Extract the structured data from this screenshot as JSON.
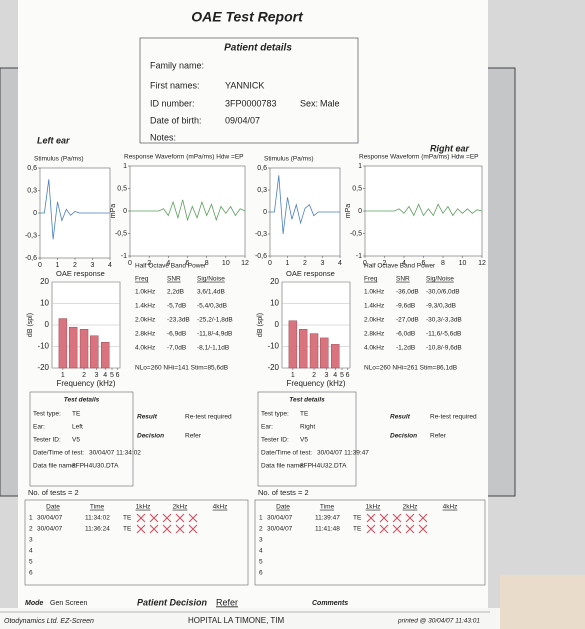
{
  "header": {
    "title": "OAE Test Report"
  },
  "patient": {
    "title": "Patient details",
    "fields": [
      {
        "label": "Family name:"
      },
      {
        "label": "First names:",
        "value": "YANNICK"
      },
      {
        "label": "ID number:",
        "value": "3FP0000783",
        "extra_label": "Sex:",
        "extra_value": "Male"
      },
      {
        "label": "Date of birth:",
        "value": "09/04/07"
      },
      {
        "label": "Notes:"
      }
    ]
  },
  "ears": [
    {
      "label": "Left ear",
      "stimulus": {
        "title": "Stimulus (Pa/ms)",
        "xlim": [
          0,
          4
        ],
        "xticks": [
          0,
          1,
          2,
          3,
          4
        ],
        "ylim": [
          -0.6,
          0.6
        ],
        "yticks": [
          {
            "value": 0.6,
            "label": "0,6"
          },
          {
            "value": 0.3,
            "label": "0,3"
          },
          0,
          {
            "value": -0.3,
            "label": "-0,3"
          },
          {
            "value": -0.6,
            "label": "-0,6"
          }
        ],
        "x": [
          0,
          0.25,
          0.5,
          0.75,
          1,
          1.25,
          1.5,
          1.75,
          2,
          2.25,
          2.5,
          2.75,
          3,
          3.25,
          3.5,
          3.75,
          4
        ],
        "series": [
          {
            "color": "#4a7fc0",
            "values": [
              0,
              0,
              0.45,
              -0.35,
              0.15,
              -0.1,
              0.05,
              -0.03,
              0.02,
              0,
              0,
              0,
              0,
              0,
              0,
              0,
              0
            ]
          }
        ]
      },
      "response": {
        "title": "Response Waveform (mPa/ms) Hdw =EP",
        "ylabel": "mPa",
        "xlim": [
          0,
          12
        ],
        "xticks": [
          0,
          2,
          4,
          6,
          8,
          10,
          12
        ],
        "ylim": [
          -1,
          1
        ],
        "yticks": [
          1,
          {
            "value": 0.5,
            "label": "0,5"
          },
          0,
          {
            "value": -0.5,
            "label": "-0,5"
          },
          -1
        ],
        "x": [
          0,
          0.5,
          1,
          1.5,
          2,
          2.5,
          3,
          3.5,
          4,
          4.5,
          5,
          5.5,
          6,
          6.5,
          7,
          7.5,
          8,
          8.5,
          9,
          9.5,
          10,
          10.5,
          11,
          11.5,
          12
        ],
        "series": [
          {
            "color": "#5aa05a",
            "values": [
              0,
              0,
              0,
              0,
              0,
              0,
              0,
              0.05,
              -0.1,
              0.2,
              -0.15,
              0.25,
              -0.2,
              0.1,
              -0.15,
              0.2,
              -0.1,
              0.15,
              -0.2,
              0.1,
              -0.05,
              0.1,
              -0.1,
              0.05,
              0
            ]
          }
        ]
      },
      "oae": {
        "title": "OAE response",
        "ylabel": "dB (spl)",
        "xlabel": "Frequency (kHz)",
        "log_x": true,
        "grid": true,
        "xlim": [
          0.7,
          6.5
        ],
        "xticks": [
          1,
          2,
          3,
          4,
          5,
          6
        ],
        "ylim": [
          -20,
          20
        ],
        "yticks": [
          20,
          10,
          0,
          -10,
          -20
        ],
        "x": [
          1,
          1.4,
          2,
          2.8,
          4
        ],
        "values": [
          3,
          -1,
          -2,
          -5,
          -8
        ],
        "color": "#d9737e"
      },
      "band": {
        "title": "Half Octave Band Power",
        "header": [
          "Freq",
          "SNR",
          "Sig/Noise"
        ],
        "rows": [
          [
            "1.0kHz",
            "2,2dB",
            "3,6/1,4dB"
          ],
          [
            "1.4kHz",
            "-5,7dB",
            "-5,4/0,3dB"
          ],
          [
            "2.0kHz",
            "-23,3dB",
            "-25,2/-1,8dB"
          ],
          [
            "2.8kHz",
            "-6,9dB",
            "-11,8/-4,9dB"
          ],
          [
            "4.0kHz",
            "-7,0dB",
            "-8,1/-1,1dB"
          ]
        ],
        "footer": "NLo=260  NHi=141  Stim=85,6dB"
      },
      "details": {
        "title": "Test details",
        "fields": [
          [
            "Test type:",
            "TE"
          ],
          [
            "Ear:",
            "Left"
          ],
          [
            "Tester ID:",
            "V5"
          ],
          [
            "Date/Time of test:",
            "30/04/07 11:34:02"
          ],
          [
            "Data file name:",
            "3FPH4U30.DTA"
          ]
        ],
        "result_label": "Result",
        "result": "Re-test required",
        "decision_label": "Decision",
        "decision": "Refer"
      },
      "count": "No. of tests = 2",
      "tests": {
        "header": [
          "Date",
          "Time",
          "1kHz",
          "2kHz",
          "4kHz"
        ],
        "rows": [
          [
            "1",
            "30/04/07",
            "11:34:02",
            "TE"
          ],
          [
            "2",
            "30/04/07",
            "11:36:24",
            "TE"
          ],
          [
            "3"
          ],
          [
            "4"
          ],
          [
            "5"
          ],
          [
            "6"
          ]
        ]
      }
    },
    {
      "label": "Right ear",
      "stimulus": {
        "title": "Stimulus (Pa/ms)",
        "xlim": [
          0,
          4
        ],
        "xticks": [
          0,
          1,
          2,
          3,
          4
        ],
        "ylim": [
          -0.6,
          0.6
        ],
        "yticks": [
          {
            "value": 0.6,
            "label": "0,6"
          },
          {
            "value": 0.3,
            "label": "0,3"
          },
          0,
          {
            "value": -0.3,
            "label": "-0,3"
          },
          {
            "value": -0.6,
            "label": "-0,6"
          }
        ],
        "x": [
          0,
          0.25,
          0.5,
          0.75,
          1,
          1.25,
          1.5,
          1.75,
          2,
          2.25,
          2.5,
          2.75,
          3,
          3.25,
          3.5,
          3.75,
          4
        ],
        "series": [
          {
            "color": "#4a7fc0",
            "values": [
              0,
              0,
              0.5,
              -0.3,
              0.2,
              -0.1,
              0.1,
              -0.15,
              0.05,
              0.1,
              -0.05,
              0,
              0,
              0,
              0,
              0,
              0
            ]
          }
        ]
      },
      "response": {
        "title": "Response Waveform (mPa/ms) Hdw =EP",
        "ylabel": "mPa",
        "xlim": [
          0,
          12
        ],
        "xticks": [
          0,
          2,
          4,
          6,
          8,
          10,
          12
        ],
        "ylim": [
          -1,
          1
        ],
        "yticks": [
          1,
          {
            "value": 0.5,
            "label": "0,5"
          },
          0,
          {
            "value": -0.5,
            "label": "-0,5"
          },
          -1
        ],
        "x": [
          0,
          0.5,
          1,
          1.5,
          2,
          2.5,
          3,
          3.5,
          4,
          4.5,
          5,
          5.5,
          6,
          6.5,
          7,
          7.5,
          8,
          8.5,
          9,
          9.5,
          10,
          10.5,
          11,
          11.5,
          12
        ],
        "series": [
          {
            "color": "#5aa05a",
            "values": [
              0,
              0,
              0,
              0,
              0,
              0,
              0,
              0.05,
              -0.05,
              0.1,
              -0.1,
              0.15,
              -0.1,
              0.05,
              -0.1,
              0.15,
              -0.05,
              0.1,
              -0.1,
              0.05,
              -0.05,
              0.05,
              -0.05,
              0.03,
              0
            ]
          }
        ]
      },
      "oae": {
        "title": "OAE response",
        "ylabel": "dB (spl)",
        "xlabel": "Frequency (kHz)",
        "log_x": true,
        "grid": true,
        "xlim": [
          0.7,
          6.5
        ],
        "xticks": [
          1,
          2,
          3,
          4,
          5,
          6
        ],
        "ylim": [
          -20,
          20
        ],
        "yticks": [
          20,
          10,
          0,
          -10,
          -20
        ],
        "x": [
          1,
          1.4,
          2,
          2.8,
          4
        ],
        "values": [
          2,
          -2,
          -4,
          -6,
          -9
        ],
        "color": "#d9737e"
      },
      "band": {
        "title": "Half Octave Band Power",
        "header": [
          "Freq",
          "SNR",
          "Sig/Noise"
        ],
        "rows": [
          [
            "1.0kHz",
            "-36,0dB",
            "-30,0/6,0dB"
          ],
          [
            "1.4kHz",
            "-9,6dB",
            "-9,3/0,3dB"
          ],
          [
            "2.0kHz",
            "-27,0dB",
            "-30,3/-3,3dB"
          ],
          [
            "2.8kHz",
            "-6,0dB",
            "-11,6/-5,6dB"
          ],
          [
            "4.0kHz",
            "-1,2dB",
            "-10,8/-9,6dB"
          ]
        ],
        "footer": "NLo=260  NHi=261  Stim=86,1dB"
      },
      "details": {
        "title": "Test details",
        "fields": [
          [
            "Test type:",
            "TE"
          ],
          [
            "Ear:",
            "Right"
          ],
          [
            "Tester ID:",
            "V5"
          ],
          [
            "Date/Time of test:",
            "30/04/07 11:39:47"
          ],
          [
            "Data file name:",
            "3FPH4U32.DTA"
          ]
        ],
        "result_label": "Result",
        "result": "Re-test required",
        "decision_label": "Decision",
        "decision": "Refer"
      },
      "count": "No. of tests = 2",
      "tests": {
        "header": [
          "Date",
          "Time",
          "1kHz",
          "2kHz",
          "4kHz"
        ],
        "rows": [
          [
            "1",
            "30/04/07",
            "11:39:47",
            "TE"
          ],
          [
            "2",
            "30/04/07",
            "11:41:48",
            "TE"
          ],
          [
            "3"
          ],
          [
            "4"
          ],
          [
            "5"
          ],
          [
            "6"
          ]
        ]
      }
    }
  ],
  "footer": {
    "mode_label": "Mode",
    "mode": "Gen Screen",
    "decision_label": "Patient Decision",
    "decision": "Refer",
    "comments_label": "Comments",
    "company": "Otodynamics Ltd. EZ-Screen",
    "site": "HOPITAL LA TIMONE, TIM",
    "printed": "printed @  30/04/07 11:43:01"
  }
}
